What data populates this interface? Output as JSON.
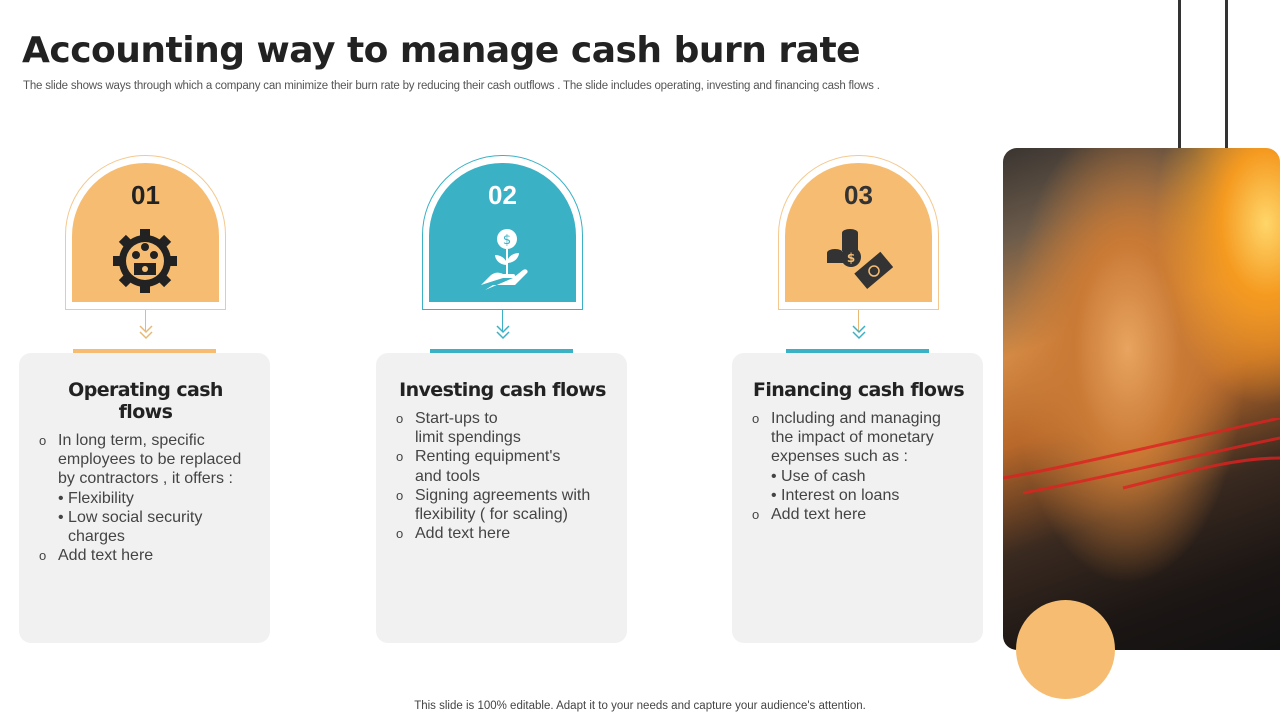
{
  "title": "Accounting way to manage cash burn rate",
  "subtitle": "The slide shows ways through which a company can minimize their burn rate by reducing their cash outflows . The slide includes operating, investing and financing cash flows .",
  "footer": "This slide is 100% editable. Adapt it to your needs and capture your audience's attention.",
  "colors": {
    "orange": "#F6BD72",
    "teal": "#3AB1C4"
  },
  "steps": [
    {
      "number": "01",
      "icon": "gear-money-icon",
      "color": "orange",
      "title": "Operating cash flows",
      "items": [
        {
          "text": "In long term, specific employees to be replaced by contractors , it offers :",
          "sub": [
            "• Flexibility",
            "• Low social security charges"
          ]
        },
        {
          "text": "Add text here"
        }
      ]
    },
    {
      "number": "02",
      "icon": "plant-money-hand-icon",
      "color": "teal",
      "title": "Investing cash flows",
      "items": [
        {
          "text": "Start-ups to limit spendings"
        },
        {
          "text": "Renting equipment's and tools"
        },
        {
          "text": "Signing agreements with flexibility ( for scaling)"
        },
        {
          "text": "Add text here"
        }
      ]
    },
    {
      "number": "03",
      "icon": "coins-banknote-icon",
      "color": "orange",
      "title": "Financing cash flows",
      "items": [
        {
          "text": "Including and managing the impact of monetary expenses such as :",
          "sub": [
            "•  Use of cash",
            "•  Interest  on loans"
          ]
        },
        {
          "text": "Add text here"
        }
      ]
    }
  ]
}
